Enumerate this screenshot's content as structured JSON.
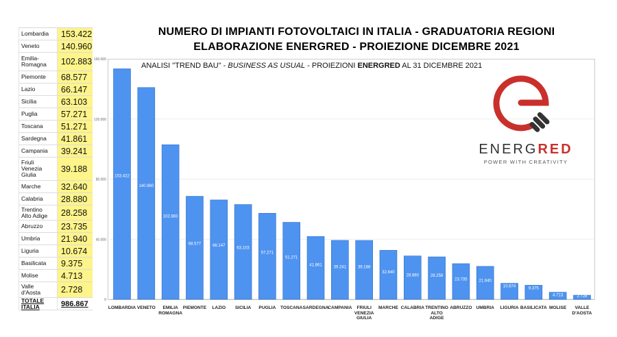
{
  "title_line1": "NUMERO DI IMPIANTI FOTOVOLTAICI IN ITALIA - GRADUATORIA REGIONI",
  "title_line2": "ELABORAZIONE ENERGRED - PROIEZIONE DICEMBRE 2021",
  "subtitle": {
    "part1": "ANALISI \"TREND BAU\" - ",
    "part2": "BUSINESS AS USUAL",
    "part3": " - PROIEZIONI ",
    "part4": "ENERGRED",
    "part5": " AL 31 DICEMBRE 2021"
  },
  "logo": {
    "word_part1": "ENERG",
    "word_part2": "RED",
    "tagline": "POWER WITH CREATIVITY",
    "brand_red": "#c9302c",
    "brand_dark": "#333333"
  },
  "table": {
    "rows": [
      {
        "region": "Lombardia",
        "value": "153.422"
      },
      {
        "region": "Veneto",
        "value": "140.960"
      },
      {
        "region": "Emilia-\nRomagna",
        "value": "102.883"
      },
      {
        "region": "Piemonte",
        "value": "68.577"
      },
      {
        "region": "Lazio",
        "value": "66.147"
      },
      {
        "region": "Sicilia",
        "value": "63.103"
      },
      {
        "region": "Puglia",
        "value": "57.271"
      },
      {
        "region": "Toscana",
        "value": "51.271"
      },
      {
        "region": "Sardegna",
        "value": "41.861"
      },
      {
        "region": "Campania",
        "value": "39.241"
      },
      {
        "region": "Friuli\nVenezia\nGiulia",
        "value": "39.188"
      },
      {
        "region": "Marche",
        "value": "32.640"
      },
      {
        "region": "Calabria",
        "value": "28.880"
      },
      {
        "region": "Trentino\nAlto Adige",
        "value": "28.258"
      },
      {
        "region": "Abruzzo",
        "value": "23.735"
      },
      {
        "region": "Umbria",
        "value": "21.940"
      },
      {
        "region": "Liguria",
        "value": "10.674"
      },
      {
        "region": "Basilicata",
        "value": "9.375"
      },
      {
        "region": "Molise",
        "value": "4.713"
      },
      {
        "region": "Valle\nd'Aosta",
        "value": "2.728"
      }
    ],
    "total_label": "TOTALE\nITALIA",
    "total_value": "986.867",
    "highlight_color": "#fdf48a"
  },
  "chart_data": {
    "type": "bar",
    "title": "NUMERO DI IMPIANTI FOTOVOLTAICI IN ITALIA - GRADUATORIA REGIONI",
    "subtitle": "ANALISI \"TREND BAU\" - BUSINESS AS USUAL - PROIEZIONI ENERGRED AL 31 DICEMBRE 2021",
    "xlabel": "",
    "ylabel": "",
    "categories": [
      "LOMBARDIA",
      "VENETO",
      "EMILIA\nROMAGNA",
      "PIEMONTE",
      "LAZIO",
      "SICILIA",
      "PUGLIA",
      "TOSCANA",
      "SARDEGNA",
      "CAMPANIA",
      "FRIULI\nVENEZIA\nGIULIA",
      "MARCHE",
      "CALABRIA",
      "TRENTINO\nALTO\nADIGE",
      "ABRUZZO",
      "UMBRIA",
      "LIGURIA",
      "BASILICATA",
      "MOLISE",
      "VALLE\nD'AOSTA"
    ],
    "values": [
      153422,
      140960,
      102883,
      68577,
      66147,
      63103,
      57271,
      51271,
      41861,
      39241,
      39188,
      32640,
      28880,
      28258,
      23735,
      21940,
      10674,
      9375,
      4713,
      2728
    ],
    "value_labels": [
      "153.422",
      "140.960",
      "102.883",
      "68.577",
      "66.147",
      "63.103",
      "57.271",
      "51.271",
      "41.861",
      "39.241",
      "39.188",
      "32.640",
      "28.880",
      "28.258",
      "23.735",
      "21.940",
      "10.674",
      "9.375",
      "4.713",
      "2.728"
    ],
    "ylim": [
      0,
      160000
    ],
    "yticks": [
      0,
      40000,
      80000,
      120000,
      160000
    ],
    "ytick_labels": [
      "0",
      "40.000",
      "80.000",
      "120.000",
      "160.000"
    ],
    "grid": true,
    "bar_color": "#4e93f0",
    "bar_edge_color": "#2f6fc9"
  }
}
